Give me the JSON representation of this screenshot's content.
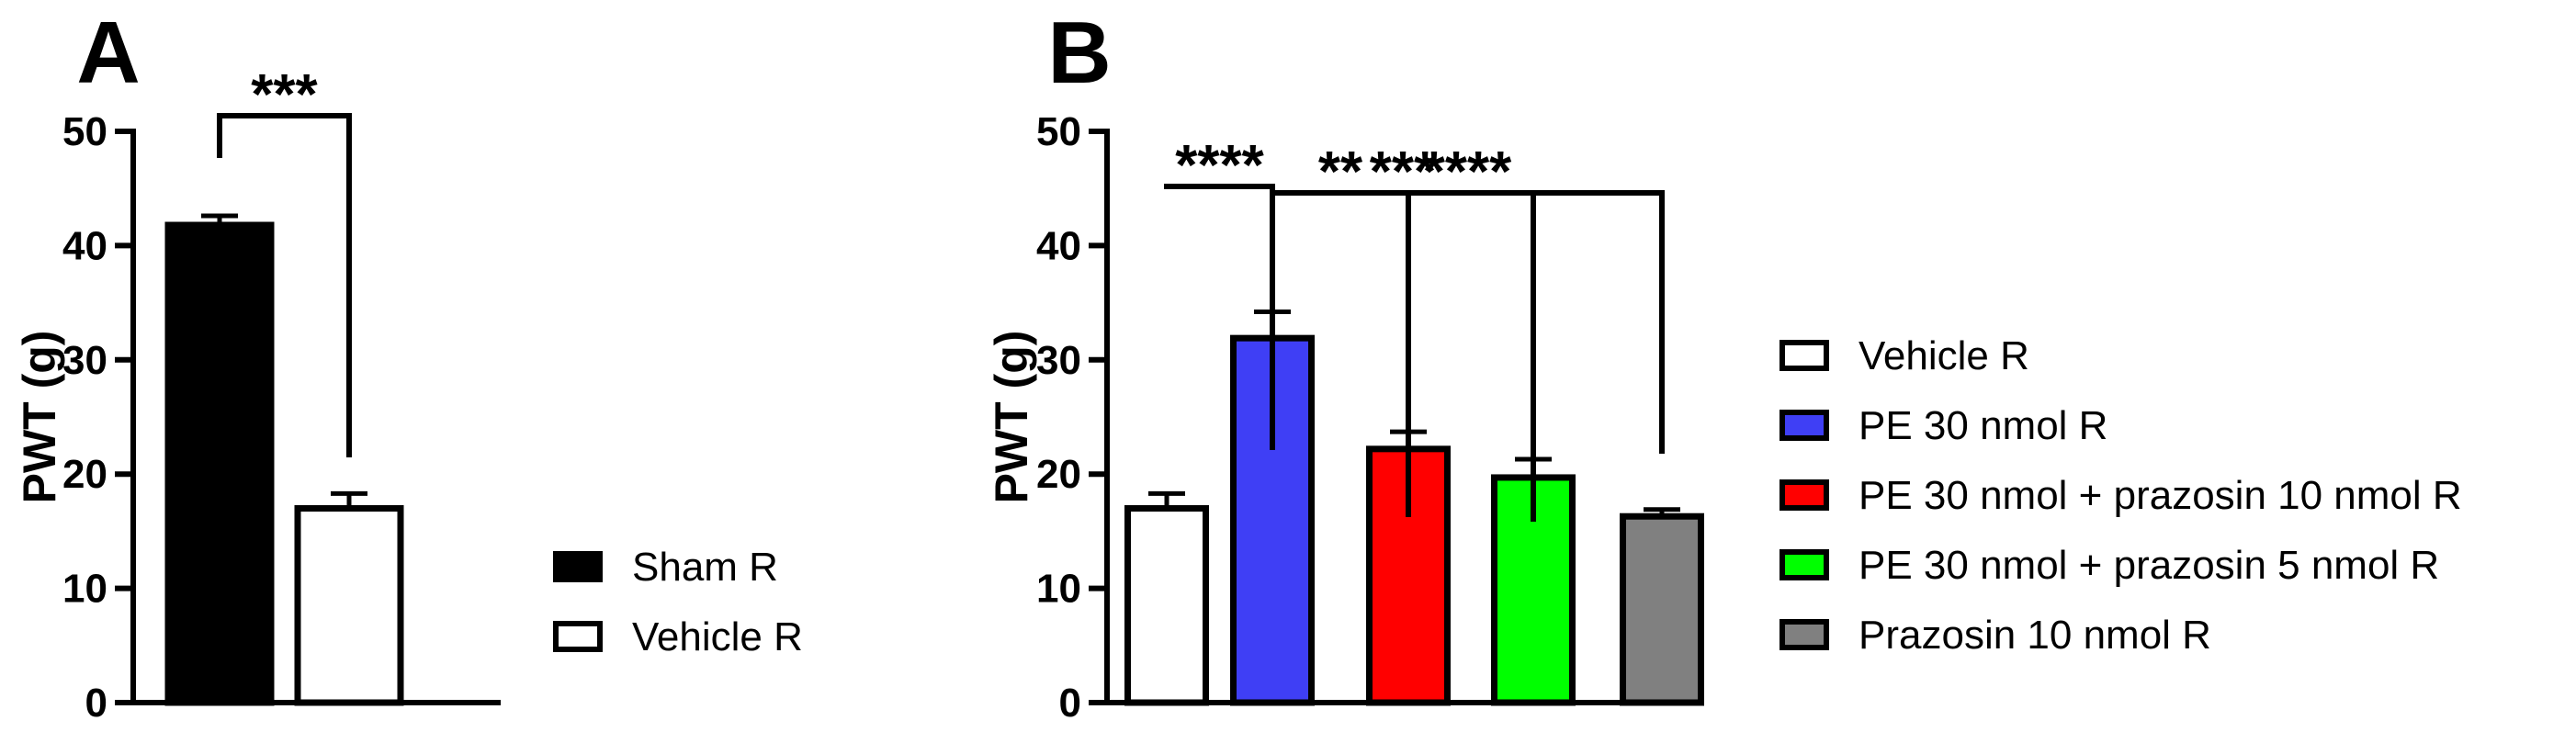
{
  "chart_data": [
    {
      "type": "bar",
      "panel_label": "A",
      "title": "",
      "xlabel": "",
      "ylabel": "PWT (g)",
      "ylim": [
        0,
        50
      ],
      "yticks": [
        0,
        10,
        20,
        30,
        40,
        50
      ],
      "categories": [
        "Sham R",
        "Vehicle R"
      ],
      "values": [
        41.8,
        17.0
      ],
      "errors": [
        0.8,
        1.3
      ],
      "colors": [
        "#000000",
        "#ffffff"
      ],
      "legend": [
        "Sham R",
        "Vehicle R"
      ],
      "legend_position": "right",
      "significance": [
        {
          "from": 0,
          "to": 1,
          "label": "***"
        }
      ]
    },
    {
      "type": "bar",
      "panel_label": "B",
      "title": "",
      "xlabel": "",
      "ylabel": "PWT (g)",
      "ylim": [
        0,
        50
      ],
      "yticks": [
        0,
        10,
        20,
        30,
        40,
        50
      ],
      "categories": [
        "Vehicle R",
        "PE 30 nmol R",
        "PE 30 nmol + prazosin 10 nmol R",
        "PE 30 nmol + prazosin 5 nmol R",
        "Prazosin 10 nmol R"
      ],
      "values": [
        17.0,
        31.9,
        22.2,
        19.7,
        16.3
      ],
      "errors": [
        1.3,
        2.3,
        1.5,
        1.6,
        0.6
      ],
      "colors": [
        "#ffffff",
        "#3f3ff5",
        "#ff0000",
        "#00ff00",
        "#808080"
      ],
      "legend": [
        "Vehicle R",
        "PE 30 nmol R",
        "PE 30 nmol + prazosin 10 nmol R",
        "PE 30 nmol + prazosin 5 nmol R",
        "Prazosin 10 nmol R"
      ],
      "legend_position": "right",
      "significance": [
        {
          "from": 1,
          "to": 0,
          "label": "****"
        },
        {
          "from": 1,
          "to": 2,
          "label": "**"
        },
        {
          "from": 1,
          "to": 3,
          "label": "***"
        },
        {
          "from": 1,
          "to": 4,
          "label": "****"
        }
      ]
    }
  ]
}
